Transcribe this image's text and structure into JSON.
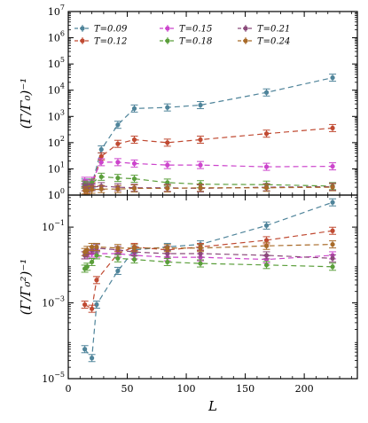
{
  "chart_data": [
    {
      "type": "line",
      "panel": "top",
      "ylabel": "(Γ/Γ₀)⁻¹",
      "yscale": "log",
      "ylim": [
        1,
        10000000
      ],
      "xlim": [
        0,
        245
      ],
      "y_ticks": [
        {
          "value": 1,
          "base": "10",
          "exp": "0"
        },
        {
          "value": 10,
          "base": "10",
          "exp": "1"
        },
        {
          "value": 100,
          "base": "10",
          "exp": "2"
        },
        {
          "value": 1000,
          "base": "10",
          "exp": "3"
        },
        {
          "value": 10000,
          "base": "10",
          "exp": "4"
        },
        {
          "value": 100000,
          "base": "10",
          "exp": "5"
        },
        {
          "value": 1000000,
          "base": "10",
          "exp": "6"
        },
        {
          "value": 10000000,
          "base": "10",
          "exp": "7"
        }
      ],
      "legend": {
        "placement": "top-left",
        "columns": 3
      },
      "series": [
        {
          "name": "T=0.09",
          "label_var": "T",
          "label_val": "=0.09",
          "color": "#4f849a",
          "marker": "circle",
          "x": [
            14,
            16,
            20,
            28,
            42,
            56,
            84,
            112,
            168,
            224
          ],
          "y": [
            3,
            1.8,
            2.5,
            55,
            480,
            2000,
            2200,
            2700,
            8200,
            30000
          ]
        },
        {
          "name": "T=0.12",
          "label_var": "T",
          "label_val": "=0.12",
          "color": "#c04a32",
          "marker": "circle",
          "x": [
            14,
            16,
            20,
            28,
            42,
            56,
            84,
            112,
            168,
            224
          ],
          "y": [
            2.5,
            1.6,
            2.2,
            30,
            90,
            130,
            100,
            130,
            220,
            360
          ]
        },
        {
          "name": "T=0.15",
          "label_var": "T",
          "label_val": "=0.15",
          "color": "#cc44cc",
          "marker": "circle",
          "x": [
            14,
            16,
            20,
            28,
            42,
            56,
            84,
            112,
            168,
            224
          ],
          "y": [
            3.5,
            2.8,
            3.5,
            18,
            18,
            16,
            14,
            14,
            12,
            12.5
          ]
        },
        {
          "name": "T=0.18",
          "label_var": "T",
          "label_val": "=0.18",
          "color": "#5a9e3a",
          "marker": "circle",
          "x": [
            14,
            16,
            20,
            28,
            42,
            56,
            84,
            112,
            168,
            224
          ],
          "y": [
            2.5,
            2.2,
            3,
            5,
            4.5,
            4.2,
            3,
            2.6,
            2.5,
            2.2
          ]
        },
        {
          "name": "T=0.21",
          "label_var": "T",
          "label_val": "=0.21",
          "color": "#8a4a7a",
          "marker": "circle",
          "x": [
            14,
            16,
            20,
            28,
            42,
            56,
            84,
            112,
            168,
            224
          ],
          "y": [
            2,
            1.8,
            2,
            2.2,
            2,
            1.9,
            1.9,
            1.8,
            2,
            2.1
          ]
        },
        {
          "name": "T=0.24",
          "label_var": "T",
          "label_val": "=0.24",
          "color": "#a86a28",
          "marker": "circle",
          "x": [
            14,
            16,
            20,
            28,
            42,
            56,
            84,
            112,
            168,
            224
          ],
          "y": [
            1.5,
            1.5,
            1.6,
            1.7,
            1.7,
            1.8,
            1.8,
            1.9,
            1.9,
            2
          ]
        }
      ]
    },
    {
      "type": "line",
      "panel": "bottom",
      "ylabel": "(Γ/Γ₀²)⁻¹",
      "xlabel": "L",
      "yscale": "log",
      "ylim": [
        1e-05,
        0.7
      ],
      "xlim": [
        0,
        245
      ],
      "x_ticks": [
        0,
        50,
        100,
        150,
        200
      ],
      "y_ticks": [
        {
          "value": 1e-05,
          "base": "10",
          "exp": "−5"
        },
        {
          "value": 0.001,
          "base": "10",
          "exp": "−3"
        },
        {
          "value": 0.1,
          "base": "10",
          "exp": "−1"
        }
      ],
      "series": [
        {
          "name": "T=0.09",
          "color": "#4f849a",
          "marker": "circle",
          "x": [
            14,
            20,
            24,
            42,
            56,
            84,
            112,
            168,
            224
          ],
          "y": [
            6e-05,
            3.5e-05,
            0.0009,
            0.007,
            0.025,
            0.03,
            0.035,
            0.11,
            0.45
          ]
        },
        {
          "name": "T=0.12",
          "color": "#c04a32",
          "marker": "circle",
          "x": [
            14,
            20,
            24,
            42,
            56,
            84,
            112,
            168,
            224
          ],
          "y": [
            0.0009,
            0.0007,
            0.004,
            0.02,
            0.03,
            0.025,
            0.03,
            0.045,
            0.08
          ]
        },
        {
          "name": "T=0.15",
          "color": "#cc44cc",
          "marker": "circle",
          "x": [
            14,
            16,
            20,
            24,
            42,
            56,
            84,
            112,
            168,
            224
          ],
          "y": [
            0.018,
            0.018,
            0.02,
            0.02,
            0.02,
            0.018,
            0.016,
            0.016,
            0.014,
            0.018
          ]
        },
        {
          "name": "T=0.18",
          "color": "#5a9e3a",
          "marker": "circle",
          "x": [
            14,
            16,
            20,
            24,
            42,
            56,
            84,
            112,
            168,
            224
          ],
          "y": [
            0.008,
            0.009,
            0.012,
            0.018,
            0.015,
            0.014,
            0.012,
            0.011,
            0.01,
            0.009
          ]
        },
        {
          "name": "T=0.21",
          "color": "#8a4a7a",
          "marker": "circle",
          "x": [
            14,
            16,
            20,
            24,
            42,
            56,
            84,
            112,
            168,
            224
          ],
          "y": [
            0.018,
            0.02,
            0.025,
            0.028,
            0.025,
            0.022,
            0.02,
            0.02,
            0.018,
            0.015
          ]
        },
        {
          "name": "T=0.24",
          "color": "#a86a28",
          "marker": "circle",
          "x": [
            14,
            16,
            20,
            24,
            42,
            56,
            84,
            112,
            168,
            224
          ],
          "y": [
            0.022,
            0.025,
            0.03,
            0.03,
            0.028,
            0.028,
            0.028,
            0.028,
            0.032,
            0.035
          ]
        }
      ]
    }
  ]
}
